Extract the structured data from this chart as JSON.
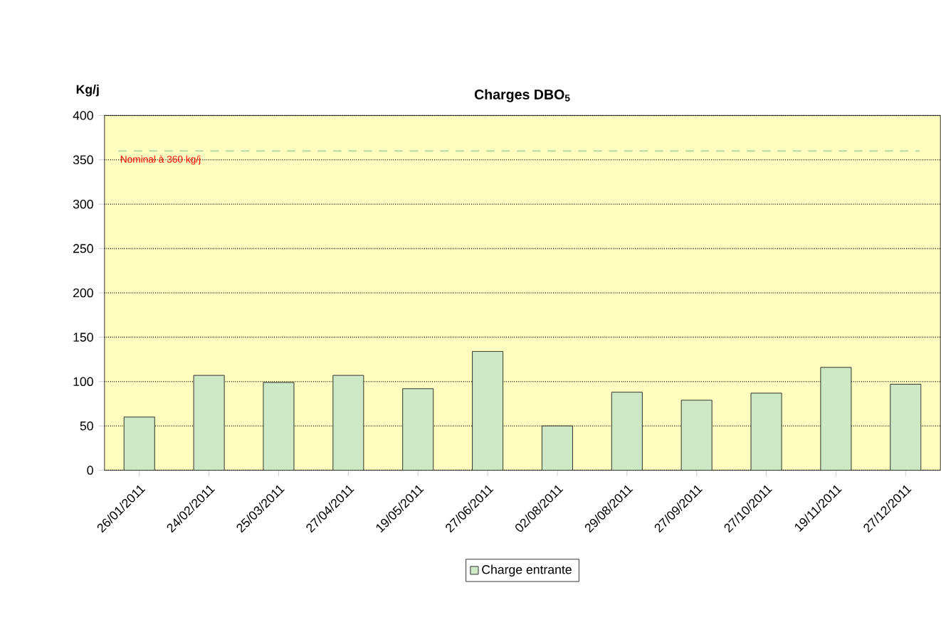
{
  "chart_data": {
    "type": "bar",
    "title": "Charges DBO$_{5}$",
    "ylabel": "Kg/j",
    "categories": [
      "26/01/2011",
      "24/02/2011",
      "25/03/2011",
      "27/04/2011",
      "19/05/2011",
      "27/06/2011",
      "02/08/2011",
      "29/08/2011",
      "27/09/2011",
      "27/10/2011",
      "19/11/2011",
      "27/12/2011"
    ],
    "series": [
      {
        "name": "Charge entrante",
        "color": "#cce8c4",
        "values": [
          60,
          107,
          99,
          107,
          92,
          134,
          50,
          88,
          79,
          87,
          116,
          97
        ]
      }
    ],
    "ylim": [
      0,
      400
    ],
    "yticks": [
      0,
      50,
      100,
      150,
      200,
      250,
      300,
      350,
      400
    ],
    "grid": "y",
    "legend": "bottom",
    "ref_lines": [
      {
        "axis": "y",
        "value": 360,
        "label": "Nominal à 360 kg/j",
        "color": "#a8d8a0",
        "line_style": "dashed"
      }
    ]
  }
}
